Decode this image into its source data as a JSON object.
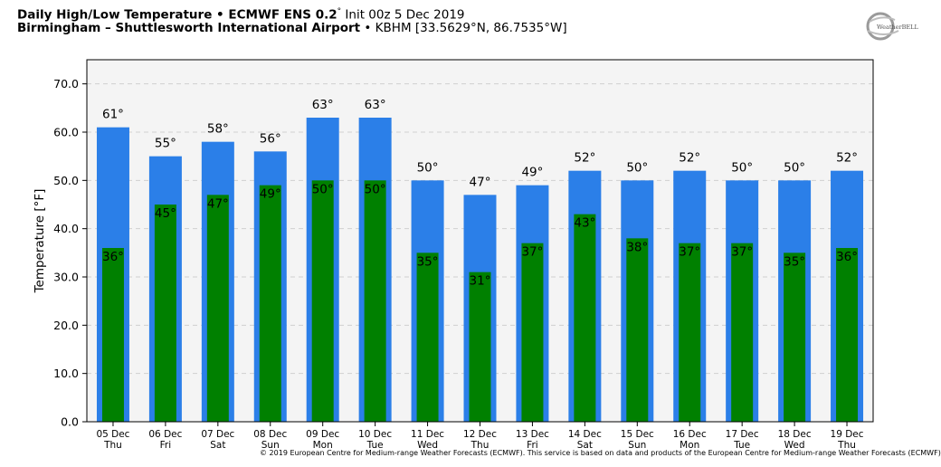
{
  "header": {
    "title_bold": "Daily High/Low Temperature • ECMWF ENS 0.2",
    "title_deg": "°",
    "title_rest": " Init 00z 5 Dec 2019",
    "location_bold": "Birmingham – Shuttlesworth International Airport",
    "location_rest": " • KBHM [33.5629°N, 86.7535°W]"
  },
  "logo": {
    "text": "WeatherBELL",
    "icon": "weatherbell-logo-icon"
  },
  "copyright": "© 2019 European Centre for Medium-range Weather Forecasts (ECMWF). This service is based on data and products of the European Centre for Medium-range Weather Forecasts (ECMWF)",
  "chart_data": {
    "type": "bar",
    "ylabel": "Temperature [°F]",
    "ylim": [
      0,
      75
    ],
    "yticks": [
      0,
      10,
      20,
      30,
      40,
      50,
      60,
      70
    ],
    "ytick_labels": [
      "0.0",
      "10.0",
      "20.0",
      "30.0",
      "40.0",
      "50.0",
      "60.0",
      "70.0"
    ],
    "grid": true,
    "categories": [
      "05 Dec",
      "06 Dec",
      "07 Dec",
      "08 Dec",
      "09 Dec",
      "10 Dec",
      "11 Dec",
      "12 Dec",
      "13 Dec",
      "14 Dec",
      "15 Dec",
      "16 Dec",
      "17 Dec",
      "18 Dec",
      "19 Dec"
    ],
    "weekdays": [
      "Thu",
      "Fri",
      "Sat",
      "Sun",
      "Mon",
      "Tue",
      "Wed",
      "Thu",
      "Fri",
      "Sat",
      "Sun",
      "Mon",
      "Tue",
      "Wed",
      "Thu"
    ],
    "series": [
      {
        "values": [
          61,
          55,
          58,
          56,
          63,
          63,
          50,
          47,
          49,
          52,
          50,
          52,
          50,
          50,
          52
        ],
        "color": "#2b7fe8"
      },
      {
        "values": [
          36,
          45,
          47,
          49,
          50,
          50,
          35,
          31,
          37,
          43,
          38,
          37,
          37,
          35,
          36
        ],
        "color": "#008000"
      }
    ],
    "high_labels": [
      "61°",
      "55°",
      "58°",
      "56°",
      "63°",
      "63°",
      "50°",
      "47°",
      "49°",
      "52°",
      "50°",
      "52°",
      "50°",
      "50°",
      "52°"
    ],
    "low_labels": [
      "36°",
      "45°",
      "47°",
      "49°",
      "50°",
      "50°",
      "35°",
      "31°",
      "37°",
      "43°",
      "38°",
      "37°",
      "37°",
      "35°",
      "36°"
    ],
    "plot_background": "#f4f4f4"
  }
}
